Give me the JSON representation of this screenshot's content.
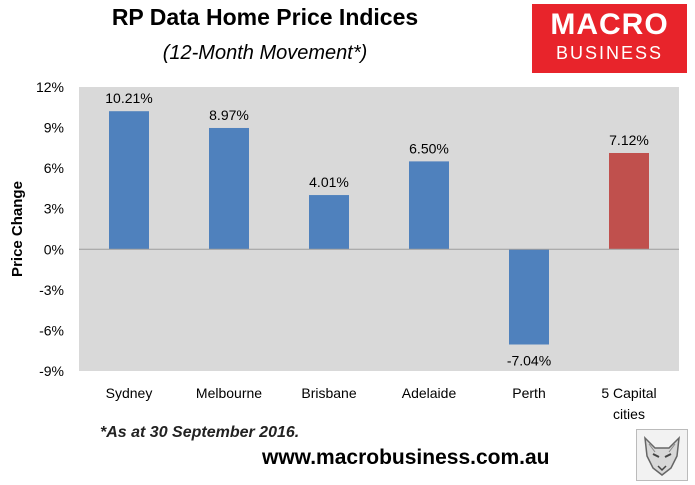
{
  "header": {
    "title": "RP Data Home Price Indices",
    "subtitle": "(12-Month Movement*)"
  },
  "logo": {
    "line1": "MACRO",
    "line2": "BUSINESS",
    "color": "#e8242b"
  },
  "footer": {
    "footnote": "*As at 30 September 2016.",
    "url": "www.macrobusiness.com.au"
  },
  "icons": {
    "watermark": "wolf-head-icon"
  },
  "chart_data": {
    "type": "bar",
    "title": "RP Data Home Price Indices",
    "subtitle": "(12-Month Movement*)",
    "ylabel": "Price Change",
    "xlabel": "",
    "ylim": [
      -9,
      12
    ],
    "yticks": [
      "12%",
      "9%",
      "6%",
      "3%",
      "0%",
      "-3%",
      "-6%",
      "-9%"
    ],
    "ytick_values": [
      12,
      9,
      6,
      3,
      0,
      -3,
      -6,
      -9
    ],
    "grid": false,
    "categories": [
      "Sydney",
      "Melbourne",
      "Brisbane",
      "Adelaide",
      "Perth",
      "5 Capital cities"
    ],
    "values": [
      10.21,
      8.97,
      4.01,
      6.5,
      -7.04,
      7.12
    ],
    "data_labels": [
      "10.21%",
      "8.97%",
      "4.01%",
      "6.50%",
      "-7.04%",
      "7.12%"
    ],
    "bar_colors": [
      "#4f81bd",
      "#4f81bd",
      "#4f81bd",
      "#4f81bd",
      "#4f81bd",
      "#c0504d"
    ],
    "plot_background": "#d9d9d9"
  }
}
